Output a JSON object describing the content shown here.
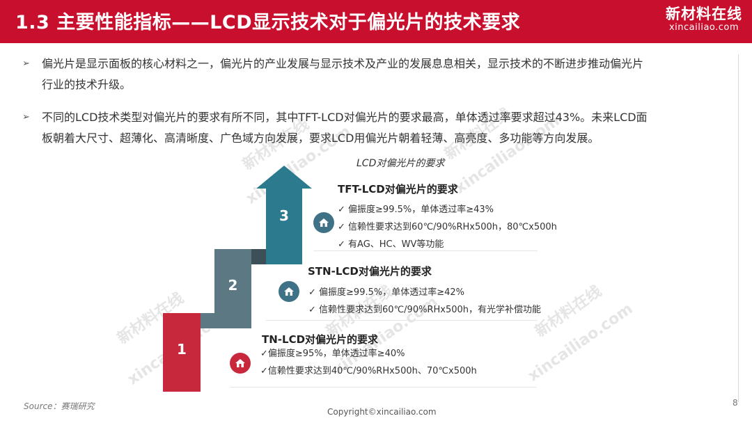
{
  "header": {
    "title": "1.3 主要性能指标——LCD显示技术对于偏光片的技术要求",
    "brand_cn": "新材料在线",
    "brand_url": "xincailiao.com"
  },
  "bullets": [
    {
      "lines": [
        "偏光片是显示面板的核心材料之一，偏光片的产业发展与显示技术及产业的发展息息相关，显示技术的不断进步推动偏光片",
        "行业的技术升级。"
      ]
    },
    {
      "lines": [
        "不同的LCD技术类型对偏光片的要求有所不同，其中TFT-LCD对偏光片的要求最高，单体透过率要求超过43%。未来LCD面",
        "板朝着大尺寸、超薄化、高清晰度、广色域方向发展，要求LCD用偏光片朝着轻薄、高亮度、多功能等方向发展。"
      ]
    }
  ],
  "diagram": {
    "caption": "LCD对偏光片的要求",
    "steps": [
      {
        "number": "1",
        "title": "TN-LCD对偏光片的要求",
        "items": [
          "✓偏振度≥95%，单体透过率≥40%",
          "✓信赖性要求达到40℃/90%RHx500h、70℃x500h"
        ]
      },
      {
        "number": "2",
        "title": "STN-LCD对偏光片的要求",
        "items": [
          "✓  偏振度≥99.5%，单体透过率≥42%",
          "✓  信赖性要求达到60℃/90%RHx500h，有光学补偿功能"
        ]
      },
      {
        "number": "3",
        "title": "TFT-LCD对偏光片的要求",
        "items": [
          "✓  偏振度≥99.5%，单体透过率≥43%",
          "✓  信赖性要求达到60℃/90%RHx500h，80℃x500h",
          "✓  有AG、HC、WV等功能"
        ]
      }
    ],
    "colors": {
      "step1": "#c8283c",
      "step2": "#5b7883",
      "step3": "#2b7a8e",
      "icon_red": "#c8283c",
      "icon_teal": "#3f7286"
    }
  },
  "watermarks": {
    "cn": "新材料在线",
    "en": "xincailiao.com"
  },
  "footer": {
    "source": "Source：赛瑞研究",
    "copyright": "Copyright©xincailiao.com",
    "page_number": "8"
  }
}
